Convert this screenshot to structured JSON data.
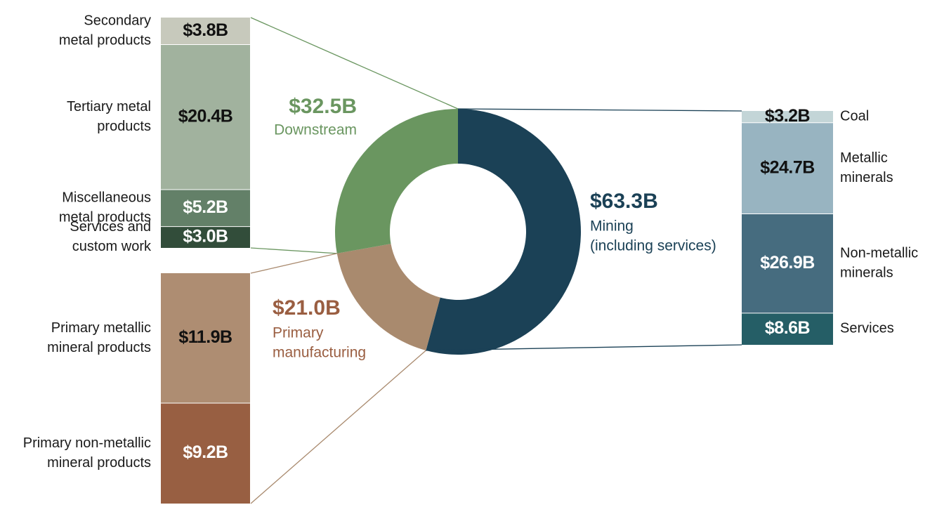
{
  "chart_data": {
    "type": "pie",
    "units": "$B",
    "segments": [
      {
        "key": "mining",
        "value_label": "$63.3B",
        "value": 63.3,
        "name_lines": [
          "Mining",
          "(including services)"
        ],
        "color": "#1b4156",
        "breakdown": [
          {
            "name_lines": [
              "Coal"
            ],
            "value": 3.2,
            "value_label": "$3.2B",
            "color": "#c3d5d7",
            "text_color": "#111111"
          },
          {
            "name_lines": [
              "Metallic",
              "minerals"
            ],
            "value": 24.7,
            "value_label": "$24.7B",
            "color": "#98b4c1",
            "text_color": "#111111"
          },
          {
            "name_lines": [
              "Non-metallic",
              "minerals"
            ],
            "value": 26.9,
            "value_label": "$26.9B",
            "color": "#466c7f",
            "text_color": "#ffffff"
          },
          {
            "name_lines": [
              "Services"
            ],
            "value": 8.6,
            "value_label": "$8.6B",
            "color": "#255e66",
            "text_color": "#ffffff"
          }
        ]
      },
      {
        "key": "primary",
        "value_label": "$21.0B",
        "value": 21.0,
        "name_lines": [
          "Primary",
          "manufacturing"
        ],
        "color": "#a98a6e",
        "label_color": "#9a5e41",
        "breakdown": [
          {
            "name_lines": [
              "Primary metallic",
              "mineral products"
            ],
            "value": 11.9,
            "value_label": "$11.9B",
            "color": "#ae8d72",
            "text_color": "#111111"
          },
          {
            "name_lines": [
              "Primary non-metallic",
              "mineral products"
            ],
            "value": 9.2,
            "value_label": "$9.2B",
            "color": "#985f42",
            "text_color": "#ffffff"
          }
        ]
      },
      {
        "key": "downstream",
        "value_label": "$32.5B",
        "value": 32.5,
        "name_lines": [
          "Downstream"
        ],
        "color": "#6a9660",
        "label_color": "#6a9660",
        "breakdown": [
          {
            "name_lines": [
              "Secondary",
              "metal products"
            ],
            "value": 3.8,
            "value_label": "$3.8B",
            "color": "#c7c9bc",
            "text_color": "#111111"
          },
          {
            "name_lines": [
              "Tertiary metal",
              "products"
            ],
            "value": 20.4,
            "value_label": "$20.4B",
            "color": "#a1b29e",
            "text_color": "#111111"
          },
          {
            "name_lines": [
              "Miscellaneous",
              "metal products"
            ],
            "value": 5.2,
            "value_label": "$5.2B",
            "color": "#638068",
            "text_color": "#ffffff"
          },
          {
            "name_lines": [
              "Services and",
              "custom work"
            ],
            "value": 3.0,
            "value_label": "$3.0B",
            "color": "#324d3a",
            "text_color": "#ffffff"
          }
        ]
      }
    ]
  }
}
